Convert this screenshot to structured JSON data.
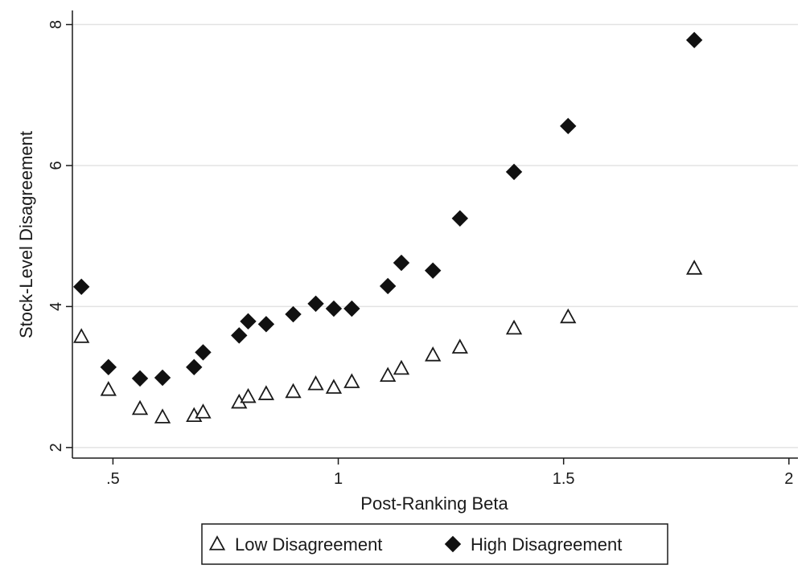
{
  "chart_data": {
    "type": "scatter",
    "xlabel": "Post-Ranking Beta",
    "ylabel": "Stock-Level Disagreement",
    "xlim": [
      0.41,
      2.02
    ],
    "ylim": [
      1.85,
      8.2
    ],
    "xticks": [
      0.5,
      1,
      1.5,
      2
    ],
    "xtick_labels": [
      ".5",
      "1",
      "1.5",
      "2"
    ],
    "yticks": [
      2,
      4,
      6,
      8
    ],
    "ytick_labels": [
      "2",
      "4",
      "6",
      "8"
    ],
    "grid": "horizontal",
    "legend_position": "bottom-center",
    "series": [
      {
        "name": "Low Disagreement",
        "marker": "hollow-triangle",
        "color": "#1a1a1a",
        "x": [
          0.43,
          0.49,
          0.56,
          0.61,
          0.68,
          0.7,
          0.78,
          0.8,
          0.84,
          0.9,
          0.95,
          0.99,
          1.03,
          1.11,
          1.14,
          1.21,
          1.27,
          1.39,
          1.51,
          1.79
        ],
        "y": [
          3.57,
          2.82,
          2.55,
          2.43,
          2.45,
          2.5,
          2.64,
          2.72,
          2.76,
          2.79,
          2.9,
          2.85,
          2.93,
          3.02,
          3.12,
          3.31,
          3.42,
          3.69,
          3.85,
          4.54
        ]
      },
      {
        "name": "High Disagreement",
        "marker": "filled-diamond",
        "color": "#1a1a1a",
        "x": [
          0.43,
          0.49,
          0.56,
          0.61,
          0.68,
          0.7,
          0.78,
          0.8,
          0.84,
          0.9,
          0.95,
          0.99,
          1.03,
          1.11,
          1.14,
          1.21,
          1.27,
          1.39,
          1.51,
          1.79
        ],
        "y": [
          4.28,
          3.14,
          2.98,
          2.99,
          3.14,
          3.35,
          3.59,
          3.79,
          3.75,
          3.89,
          4.04,
          3.97,
          3.97,
          4.29,
          4.62,
          4.51,
          5.25,
          5.91,
          6.56,
          7.78
        ]
      }
    ]
  }
}
